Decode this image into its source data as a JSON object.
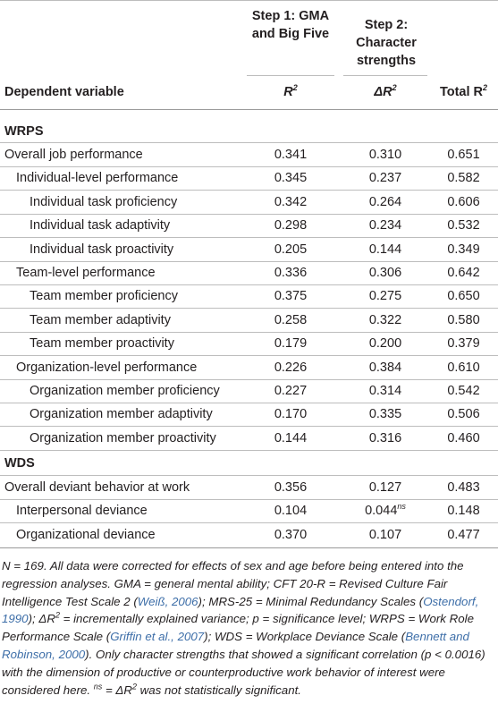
{
  "headers": {
    "step1": "Step 1: GMA and Big Five",
    "step2": "Step 2: Character strengths",
    "dependent": "Dependent variable",
    "r2_base": "R",
    "delta_base": "ΔR",
    "total_base": "Total R",
    "sup2": "2"
  },
  "sections": [
    {
      "title": "WRPS",
      "rows": [
        {
          "label": "Overall job performance",
          "indent": 0,
          "r2": "0.341",
          "dr2": "0.310",
          "total": "0.651"
        },
        {
          "label": "Individual-level performance",
          "indent": 1,
          "r2": "0.345",
          "dr2": "0.237",
          "total": "0.582"
        },
        {
          "label": "Individual task proficiency",
          "indent": 2,
          "r2": "0.342",
          "dr2": "0.264",
          "total": "0.606"
        },
        {
          "label": "Individual task adaptivity",
          "indent": 2,
          "r2": "0.298",
          "dr2": "0.234",
          "total": "0.532"
        },
        {
          "label": "Individual task proactivity",
          "indent": 2,
          "r2": "0.205",
          "dr2": "0.144",
          "total": "0.349"
        },
        {
          "label": "Team-level performance",
          "indent": 1,
          "r2": "0.336",
          "dr2": "0.306",
          "total": "0.642"
        },
        {
          "label": "Team member proficiency",
          "indent": 2,
          "r2": "0.375",
          "dr2": "0.275",
          "total": "0.650"
        },
        {
          "label": "Team member adaptivity",
          "indent": 2,
          "r2": "0.258",
          "dr2": "0.322",
          "total": "0.580"
        },
        {
          "label": "Team member proactivity",
          "indent": 2,
          "r2": "0.179",
          "dr2": "0.200",
          "total": "0.379"
        },
        {
          "label": "Organization-level performance",
          "indent": 1,
          "r2": "0.226",
          "dr2": "0.384",
          "total": "0.610"
        },
        {
          "label": "Organization member proficiency",
          "indent": 2,
          "r2": "0.227",
          "dr2": "0.314",
          "total": "0.542"
        },
        {
          "label": "Organization member adaptivity",
          "indent": 2,
          "r2": "0.170",
          "dr2": "0.335",
          "total": "0.506"
        },
        {
          "label": "Organization member proactivity",
          "indent": 2,
          "r2": "0.144",
          "dr2": "0.316",
          "total": "0.460"
        }
      ]
    },
    {
      "title": "WDS",
      "rows": [
        {
          "label": "Overall deviant behavior at work",
          "indent": 0,
          "r2": "0.356",
          "dr2": "0.127",
          "total": "0.483"
        },
        {
          "label": "Interpersonal deviance",
          "indent": 1,
          "r2": "0.104",
          "dr2": "0.044",
          "dr2_sup": "ns",
          "total": "0.148"
        },
        {
          "label": "Organizational deviance",
          "indent": 1,
          "r2": "0.370",
          "dr2": "0.107",
          "total": "0.477"
        }
      ]
    }
  ],
  "note": {
    "p1": "N = 169. All data were corrected for effects of sex and age before being entered into the regression analyses. GMA = general mental ability; CFT 20-R = Revised Culture Fair Intelligence Test Scale 2 (",
    "cite1": "Weiß, 2006",
    "p2": "); MRS-25 = Minimal Redundancy Scales (",
    "cite2": "Ostendorf, 1990",
    "p3": "); ΔR",
    "p3sup": "2",
    "p4": " = incrementally explained variance; p = significance level; WRPS = Work Role Performance Scale (",
    "cite3": "Griffin et al., 2007",
    "p5": "); WDS = Workplace Deviance Scale (",
    "cite4": "Bennett and Robinson, 2000",
    "p6": "). Only character strengths that showed a significant correlation (p < 0.0016) with the dimension of productive or counterproductive work behavior of interest were considered here. ",
    "p7sup": "ns",
    "p7": " = ΔR",
    "p7sup2": "2",
    "p8": " was not statistically significant."
  }
}
